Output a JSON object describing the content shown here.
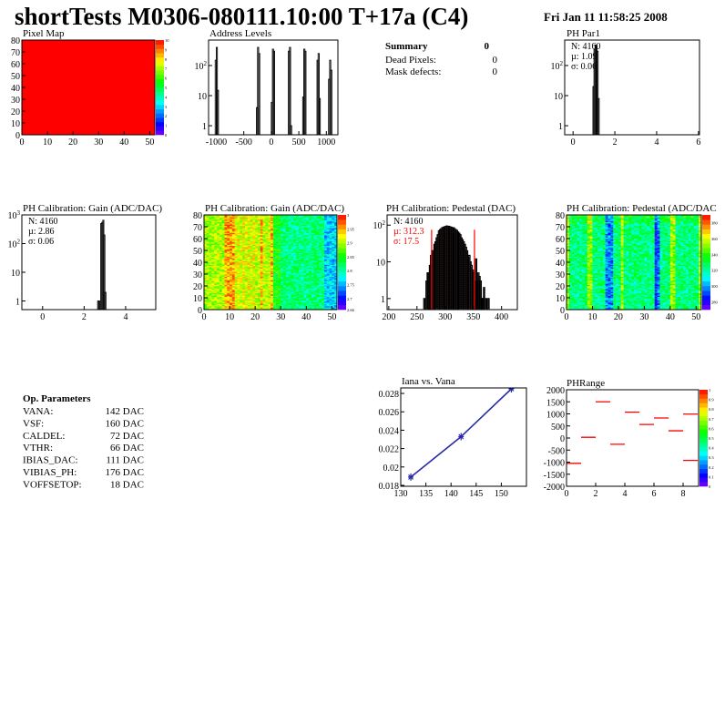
{
  "header": {
    "title": "shortTests M0306-080111.10:00 T+17a (C4)",
    "date": "Fri Jan 11 11:58:25 2008"
  },
  "summary": {
    "title": "Summary",
    "title_value": "0",
    "rows": [
      {
        "label": "Dead Pixels:",
        "value": "0"
      },
      {
        "label": "Mask defects:",
        "value": "0"
      }
    ]
  },
  "op_parameters": {
    "title": "Op. Parameters",
    "rows": [
      {
        "label": "VANA:",
        "value": "142 DAC"
      },
      {
        "label": "VSF:",
        "value": "160 DAC"
      },
      {
        "label": "CALDEL:",
        "value": "72 DAC"
      },
      {
        "label": "VTHR:",
        "value": "66 DAC"
      },
      {
        "label": "IBIAS_DAC:",
        "value": "111 DAC"
      },
      {
        "label": "VIBIAS_PH:",
        "value": "176 DAC"
      },
      {
        "label": "VOFFSETOP:",
        "value": "18 DAC"
      }
    ]
  },
  "chart_data": [
    {
      "id": "pixel-map",
      "type": "heatmap",
      "title": "Pixel Map",
      "xlim": [
        0,
        52
      ],
      "ylim": [
        0,
        80
      ],
      "xticks": [
        "0",
        "10",
        "20",
        "30",
        "40",
        "50"
      ],
      "yticks": [
        "0",
        "10",
        "20",
        "30",
        "40",
        "50",
        "60",
        "70",
        "80"
      ],
      "zlim": [
        0,
        10
      ],
      "zticks": [
        "0",
        "1",
        "2",
        "3",
        "4",
        "5",
        "6",
        "7",
        "8",
        "9",
        "10"
      ],
      "uniform_value": 10
    },
    {
      "id": "address-levels",
      "type": "bar",
      "title": "Address Levels",
      "log_y": true,
      "xlim": [
        -1140,
        1210
      ],
      "ylim": [
        0.5,
        700
      ],
      "xticks": [
        "-1000",
        "-500",
        "0",
        "500",
        "1000"
      ],
      "yticks": [
        "1",
        "10",
        "10^2"
      ],
      "bin_width": 20,
      "bins": [
        [
          -1020,
          150
        ],
        [
          -1000,
          400
        ],
        [
          -980,
          15
        ],
        [
          -270,
          4
        ],
        [
          -250,
          400
        ],
        [
          -230,
          250
        ],
        [
          0,
          6
        ],
        [
          20,
          350
        ],
        [
          40,
          300
        ],
        [
          310,
          300
        ],
        [
          330,
          400
        ],
        [
          350,
          1
        ],
        [
          570,
          9
        ],
        [
          590,
          350
        ],
        [
          610,
          300
        ],
        [
          830,
          150
        ],
        [
          850,
          250
        ],
        [
          870,
          8
        ],
        [
          1040,
          35
        ],
        [
          1060,
          150
        ],
        [
          1080,
          70
        ]
      ]
    },
    {
      "id": "ph-par1",
      "type": "bar",
      "title": "PH Par1",
      "log_y": true,
      "xlim": [
        -0.4,
        6.05
      ],
      "ylim": [
        0.5,
        700
      ],
      "xticks": [
        "0",
        "2",
        "4",
        "6"
      ],
      "yticks": [
        "1",
        "10",
        "10^2"
      ],
      "stats": {
        "N": "N: 4160",
        "mean": "µ: 1.09",
        "sigma": "σ: 0.06"
      },
      "bin_width": 0.05,
      "bins": [
        [
          0.95,
          20
        ],
        [
          1.0,
          350
        ],
        [
          1.05,
          480
        ],
        [
          1.1,
          420
        ],
        [
          1.15,
          300
        ],
        [
          1.2,
          8
        ]
      ]
    },
    {
      "id": "gain-hist",
      "type": "bar",
      "title": "PH Calibration: Gain (ADC/DAC)",
      "log_y": true,
      "xlim": [
        -1.0,
        5.45
      ],
      "ylim": [
        0.5,
        1000
      ],
      "xticks": [
        "0",
        "2",
        "4"
      ],
      "yticks": [
        "1",
        "10",
        "10^2",
        "10^3"
      ],
      "stats": {
        "N": "N: 4160",
        "mean": "µ: 2.86",
        "sigma": "σ: 0.06"
      },
      "bin_width": 0.05,
      "bins": [
        [
          2.65,
          1
        ],
        [
          2.7,
          1
        ],
        [
          2.8,
          500
        ],
        [
          2.85,
          550
        ],
        [
          2.9,
          650
        ],
        [
          2.95,
          200
        ],
        [
          3.0,
          2
        ]
      ]
    },
    {
      "id": "gain-map",
      "type": "heatmap",
      "title": "PH Calibration: Gain (ADC/DAC)",
      "xlim": [
        0,
        52
      ],
      "ylim": [
        0,
        80
      ],
      "xticks": [
        "0",
        "10",
        "20",
        "30",
        "40",
        "50"
      ],
      "yticks": [
        "0",
        "10",
        "20",
        "30",
        "40",
        "50",
        "60",
        "70",
        "80"
      ],
      "zlim": [
        2.66,
        3.0
      ],
      "zticks": [
        "2.66",
        "2.7",
        "2.75",
        "2.8",
        "2.85",
        "2.9",
        "2.95",
        "3"
      ]
    },
    {
      "id": "pedestal-hist",
      "type": "bar",
      "title": "PH Calibration: Pedestal (DAC)",
      "log_y": true,
      "xlim": [
        197,
        428
      ],
      "ylim": [
        0.5,
        190
      ],
      "xticks": [
        "200",
        "250",
        "300",
        "350",
        "400"
      ],
      "yticks": [
        "1",
        "10",
        "10^2"
      ],
      "stats": {
        "N": "N: 4160",
        "mean": "µ: 312.3",
        "sigma": "σ: 17.5"
      },
      "fit_range": [
        276,
        352
      ],
      "bin_width": 2,
      "bins": [
        [
          262,
          1
        ],
        [
          266,
          3
        ],
        [
          268,
          5
        ],
        [
          270,
          5
        ],
        [
          272,
          8
        ],
        [
          274,
          15
        ],
        [
          276,
          20
        ],
        [
          278,
          20
        ],
        [
          280,
          30
        ],
        [
          282,
          35
        ],
        [
          284,
          45
        ],
        [
          286,
          55
        ],
        [
          288,
          70
        ],
        [
          290,
          75
        ],
        [
          292,
          80
        ],
        [
          294,
          85
        ],
        [
          296,
          88
        ],
        [
          298,
          90
        ],
        [
          300,
          92
        ],
        [
          302,
          95
        ],
        [
          304,
          92
        ],
        [
          306,
          93
        ],
        [
          308,
          90
        ],
        [
          310,
          88
        ],
        [
          312,
          85
        ],
        [
          314,
          85
        ],
        [
          316,
          80
        ],
        [
          318,
          75
        ],
        [
          320,
          72
        ],
        [
          322,
          65
        ],
        [
          324,
          60
        ],
        [
          326,
          55
        ],
        [
          328,
          45
        ],
        [
          330,
          40
        ],
        [
          332,
          35
        ],
        [
          334,
          30
        ],
        [
          336,
          25
        ],
        [
          338,
          20
        ],
        [
          340,
          15
        ],
        [
          342,
          15
        ],
        [
          344,
          10
        ],
        [
          346,
          8
        ],
        [
          348,
          6
        ],
        [
          350,
          5
        ],
        [
          352,
          3
        ],
        [
          354,
          12
        ],
        [
          356,
          3
        ],
        [
          358,
          5
        ],
        [
          360,
          4
        ],
        [
          362,
          3
        ],
        [
          364,
          1
        ],
        [
          366,
          1
        ],
        [
          368,
          2
        ],
        [
          372,
          1
        ],
        [
          376,
          1
        ]
      ]
    },
    {
      "id": "pedestal-map",
      "type": "heatmap",
      "title": "PH Calibration: Pedestal (ADC/DAC",
      "xlim": [
        0,
        52
      ],
      "ylim": [
        0,
        80
      ],
      "xticks": [
        "0",
        "10",
        "20",
        "30",
        "40",
        "50"
      ],
      "yticks": [
        "0",
        "10",
        "20",
        "30",
        "40",
        "50",
        "60",
        "70",
        "80"
      ],
      "zlim": [
        270,
        390
      ],
      "zticks": [
        "280",
        "300",
        "320",
        "340",
        "360",
        "380"
      ]
    },
    {
      "id": "iana-vs-vana",
      "type": "line",
      "title": "Iana vs. Vana",
      "xlim": [
        130,
        155
      ],
      "ylim": [
        0.0179,
        0.0286
      ],
      "xticks": [
        "130",
        "135",
        "140",
        "145",
        "150"
      ],
      "yticks": [
        "0.018",
        "0.02",
        "0.022",
        "0.024",
        "0.026",
        "0.028"
      ],
      "x": [
        132,
        142,
        152
      ],
      "y": [
        0.0189,
        0.0233,
        0.0285
      ],
      "color": "#2a2aa8"
    },
    {
      "id": "ph-range",
      "type": "heatmap",
      "title": "PHRange",
      "xlim": [
        0,
        9.06
      ],
      "ylim": [
        -2000,
        2000
      ],
      "xticks": [
        "0",
        "2",
        "4",
        "6",
        "8"
      ],
      "yticks": [
        "-2000",
        "-1500",
        "-1000",
        "-500",
        "0",
        "500",
        "1000",
        "1500",
        "2000"
      ],
      "zlim": [
        0,
        1
      ],
      "zticks": [
        "0",
        "0.1",
        "0.2",
        "0.3",
        "0.4",
        "0.5",
        "0.6",
        "0.7",
        "0.8",
        "0.9",
        "1"
      ],
      "segments": [
        [
          0,
          1,
          -1050
        ],
        [
          1,
          2,
          30
        ],
        [
          2,
          3,
          1500
        ],
        [
          3,
          4,
          -260
        ],
        [
          4,
          5,
          1070
        ],
        [
          5,
          6,
          560
        ],
        [
          6,
          7,
          830
        ],
        [
          7,
          8,
          300
        ],
        [
          8,
          9,
          990
        ],
        [
          8,
          9,
          -930
        ]
      ],
      "color": "#ff0000"
    }
  ]
}
